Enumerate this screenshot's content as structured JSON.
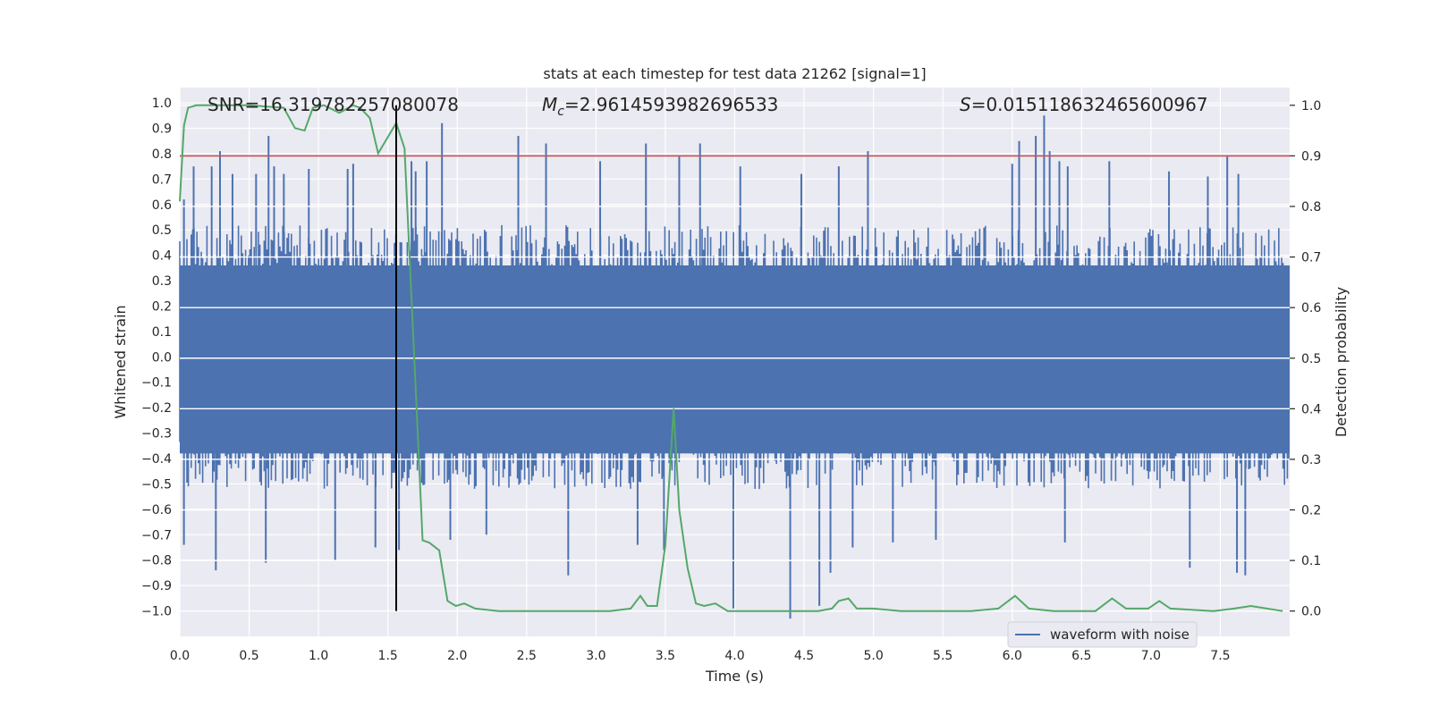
{
  "chart_data": {
    "type": "line",
    "title": "stats at each timestep for test data 21262 [signal=1]",
    "xlabel": "Time (s)",
    "ylabel": "Whitened strain",
    "y2label": "Detection probability",
    "xlim": [
      0.0,
      8.0
    ],
    "ylim": [
      -1.1,
      1.06
    ],
    "y2lim": [
      -0.05,
      1.035
    ],
    "xticks": [
      "0.0",
      "0.5",
      "1.0",
      "1.5",
      "2.0",
      "2.5",
      "3.0",
      "3.5",
      "4.0",
      "4.5",
      "5.0",
      "5.5",
      "6.0",
      "6.5",
      "7.0",
      "7.5"
    ],
    "yticks": [
      "1.0",
      "0.9",
      "0.8",
      "0.7",
      "0.6",
      "0.5",
      "0.4",
      "0.3",
      "0.2",
      "0.1",
      "0.0",
      "−0.1",
      "−0.2",
      "−0.3",
      "−0.4",
      "−0.5",
      "−0.6",
      "−0.7",
      "−0.8",
      "−0.9",
      "−1.0"
    ],
    "y2ticks": [
      "1.0",
      "0.9",
      "0.8",
      "0.7",
      "0.6",
      "0.5",
      "0.4",
      "0.3",
      "0.2",
      "0.1",
      "0.0"
    ],
    "annotations": {
      "snr": "SNR=16.319782257080078",
      "mc_symbol": "M",
      "mc_sub": "c",
      "mc_value": "=2.9614593982696533",
      "s_symbol": "S",
      "s_value": "=0.015118632465600967"
    },
    "threshold_line": {
      "y2": 0.9,
      "color": "#c44e52"
    },
    "merger_marker": {
      "x": 1.56,
      "color": "#000000"
    },
    "legend": {
      "label": "waveform with noise",
      "placement": "lower-right"
    },
    "grid": true,
    "colors": {
      "waveform": "#4c72b0",
      "probability": "#55a868",
      "background": "#eaeaf2"
    },
    "series": [
      {
        "name": "waveform with noise",
        "type": "noise-trace",
        "envelope_upper": 0.4,
        "envelope_lower": -0.4,
        "spike_peaks": [
          [
            0.03,
            0.62
          ],
          [
            0.1,
            0.75
          ],
          [
            0.23,
            0.75
          ],
          [
            0.29,
            0.81
          ],
          [
            0.38,
            0.72
          ],
          [
            0.55,
            0.72
          ],
          [
            0.64,
            0.87
          ],
          [
            0.68,
            0.75
          ],
          [
            0.75,
            0.72
          ],
          [
            0.93,
            0.74
          ],
          [
            1.21,
            0.74
          ],
          [
            1.25,
            0.76
          ],
          [
            1.67,
            0.77
          ],
          [
            1.7,
            0.73
          ],
          [
            1.78,
            0.77
          ],
          [
            1.89,
            0.92
          ],
          [
            2.44,
            0.87
          ],
          [
            2.64,
            0.84
          ],
          [
            3.03,
            0.77
          ],
          [
            3.36,
            0.84
          ],
          [
            3.6,
            0.79
          ],
          [
            3.75,
            0.84
          ],
          [
            4.04,
            0.75
          ],
          [
            4.48,
            0.72
          ],
          [
            4.75,
            0.75
          ],
          [
            4.96,
            0.81
          ],
          [
            6.0,
            0.76
          ],
          [
            6.05,
            0.85
          ],
          [
            6.17,
            0.87
          ],
          [
            6.23,
            0.95
          ],
          [
            6.27,
            0.81
          ],
          [
            6.34,
            0.77
          ],
          [
            6.4,
            0.75
          ],
          [
            6.7,
            0.77
          ],
          [
            7.13,
            0.73
          ],
          [
            7.41,
            0.71
          ],
          [
            7.55,
            0.79
          ],
          [
            7.63,
            0.72
          ],
          [
            0.03,
            -0.74
          ],
          [
            0.26,
            -0.84
          ],
          [
            0.62,
            -0.81
          ],
          [
            1.12,
            -0.8
          ],
          [
            1.41,
            -0.75
          ],
          [
            1.58,
            -0.76
          ],
          [
            1.95,
            -0.72
          ],
          [
            2.21,
            -0.7
          ],
          [
            2.8,
            -0.86
          ],
          [
            3.3,
            -0.74
          ],
          [
            3.49,
            -0.76
          ],
          [
            3.99,
            -0.99
          ],
          [
            4.4,
            -1.03
          ],
          [
            4.61,
            -0.98
          ],
          [
            4.69,
            -0.85
          ],
          [
            4.85,
            -0.75
          ],
          [
            5.14,
            -0.73
          ],
          [
            5.45,
            -0.72
          ],
          [
            6.38,
            -0.73
          ],
          [
            7.28,
            -0.83
          ],
          [
            7.62,
            -0.85
          ],
          [
            7.68,
            -0.86
          ]
        ]
      },
      {
        "name": "Detection probability",
        "axis": "right",
        "x": [
          0.0,
          0.03,
          0.06,
          0.12,
          0.5,
          0.75,
          0.83,
          0.9,
          0.96,
          1.04,
          1.15,
          1.25,
          1.3,
          1.37,
          1.43,
          1.56,
          1.62,
          1.69,
          1.75,
          1.8,
          1.87,
          1.93,
          1.99,
          2.05,
          2.13,
          2.3,
          2.6,
          2.9,
          3.1,
          3.25,
          3.32,
          3.37,
          3.44,
          3.5,
          3.56,
          3.6,
          3.66,
          3.72,
          3.78,
          3.86,
          3.95,
          4.2,
          4.6,
          4.7,
          4.75,
          4.82,
          4.88,
          5.0,
          5.2,
          5.7,
          5.9,
          6.02,
          6.12,
          6.3,
          6.6,
          6.72,
          6.82,
          6.98,
          7.06,
          7.14,
          7.45,
          7.6,
          7.72,
          7.95
        ],
        "values": [
          0.81,
          0.96,
          0.995,
          1.0,
          1.0,
          0.995,
          0.955,
          0.95,
          0.995,
          1.0,
          0.985,
          1.0,
          0.995,
          0.975,
          0.905,
          0.965,
          0.915,
          0.5,
          0.14,
          0.135,
          0.12,
          0.02,
          0.01,
          0.015,
          0.005,
          0.0,
          0.0,
          0.0,
          0.0,
          0.005,
          0.03,
          0.01,
          0.01,
          0.13,
          0.4,
          0.2,
          0.085,
          0.015,
          0.01,
          0.015,
          0.0,
          0.0,
          0.0,
          0.005,
          0.02,
          0.025,
          0.005,
          0.005,
          0.0,
          0.0,
          0.005,
          0.03,
          0.005,
          0.0,
          0.0,
          0.025,
          0.005,
          0.005,
          0.02,
          0.005,
          0.0,
          0.005,
          0.01,
          0.0
        ]
      }
    ]
  }
}
